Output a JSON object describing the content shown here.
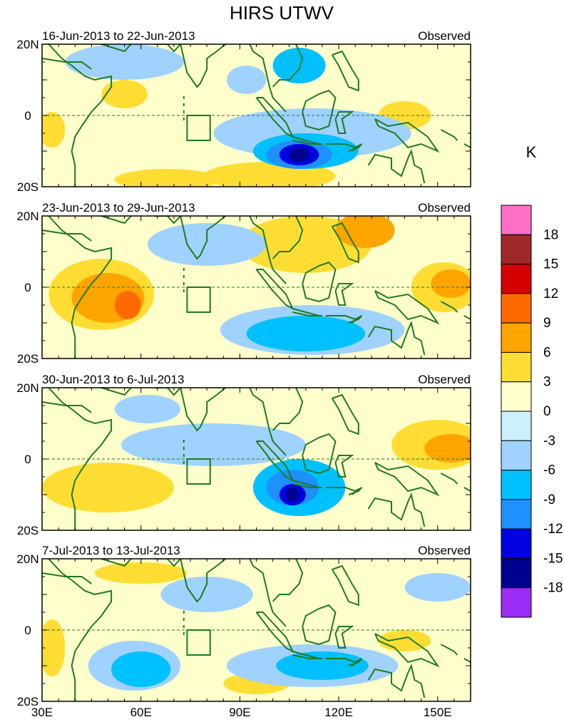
{
  "chart_data": {
    "type": "heatmap",
    "title": "HIRS UTWV",
    "units": "K",
    "x_range": [
      30,
      160
    ],
    "y_range": [
      -20,
      20
    ],
    "x_ticks": [
      {
        "value": 30,
        "label": "30E"
      },
      {
        "value": 60,
        "label": "60E"
      },
      {
        "value": 90,
        "label": "90E"
      },
      {
        "value": 120,
        "label": "120E"
      },
      {
        "value": 150,
        "label": "150E"
      }
    ],
    "y_ticks": [
      {
        "value": 20,
        "label": "20N"
      },
      {
        "value": 0,
        "label": "0"
      },
      {
        "value": -20,
        "label": "20S"
      }
    ],
    "box_region": {
      "lon": [
        74,
        81
      ],
      "lat": [
        -7,
        0
      ]
    },
    "colorbar": {
      "levels": [
        "18",
        "15",
        "12",
        "9",
        "6",
        "3",
        "0",
        "-3",
        "-6",
        "-9",
        "-12",
        "-15",
        "-18"
      ],
      "colors": [
        "#ff6ec7",
        "#a02828",
        "#d40000",
        "#ff6a00",
        "#ffa500",
        "#ffdd33",
        "#ffffcc",
        "#cdf0ff",
        "#a0d2ff",
        "#00c0ff",
        "#1e90ff",
        "#0000e0",
        "#000090",
        "#9a2cf5"
      ]
    },
    "panels": [
      {
        "period": "16-Jun-2013 to 22-Jun-2013",
        "label": "Observed",
        "anomalies": [
          {
            "lon": 33,
            "lat": -4,
            "rx": 4,
            "ry": 5,
            "level": 3
          },
          {
            "lon": 55,
            "lat": 6,
            "rx": 7,
            "ry": 4,
            "level": 3
          },
          {
            "lon": 68,
            "lat": -18,
            "rx": 16,
            "ry": 3,
            "level": 3
          },
          {
            "lon": 99,
            "lat": -17,
            "rx": 20,
            "ry": 4,
            "level": 3
          },
          {
            "lon": 140,
            "lat": 0,
            "rx": 8,
            "ry": 4,
            "level": 3
          },
          {
            "lon": 55,
            "lat": 15,
            "rx": 18,
            "ry": 5,
            "level": -3
          },
          {
            "lon": 92,
            "lat": 10,
            "rx": 6,
            "ry": 4,
            "level": -3
          },
          {
            "lon": 108,
            "lat": 14,
            "rx": 8,
            "ry": 5,
            "level": -6
          },
          {
            "lon": 112,
            "lat": -5,
            "rx": 30,
            "ry": 7,
            "level": -3
          },
          {
            "lon": 110,
            "lat": -10,
            "rx": 16,
            "ry": 5,
            "level": -6
          },
          {
            "lon": 108,
            "lat": -11,
            "rx": 10,
            "ry": 4,
            "level": -9
          },
          {
            "lon": 108,
            "lat": -11,
            "rx": 6,
            "ry": 3,
            "level": -12
          },
          {
            "lon": 108,
            "lat": -11,
            "rx": 3,
            "ry": 2,
            "level": -15
          }
        ]
      },
      {
        "period": "23-Jun-2013 to 29-Jun-2013",
        "label": "Observed",
        "anomalies": [
          {
            "lon": 48,
            "lat": -2,
            "rx": 16,
            "ry": 10,
            "level": 3
          },
          {
            "lon": 50,
            "lat": -3,
            "rx": 11,
            "ry": 7,
            "level": 6
          },
          {
            "lon": 56,
            "lat": -5,
            "rx": 4,
            "ry": 4,
            "level": 9
          },
          {
            "lon": 110,
            "lat": 12,
            "rx": 20,
            "ry": 8,
            "level": 3
          },
          {
            "lon": 128,
            "lat": 16,
            "rx": 9,
            "ry": 5,
            "level": 6
          },
          {
            "lon": 152,
            "lat": 0,
            "rx": 10,
            "ry": 7,
            "level": 3
          },
          {
            "lon": 154,
            "lat": 1,
            "rx": 6,
            "ry": 4,
            "level": 6
          },
          {
            "lon": 80,
            "lat": 12,
            "rx": 18,
            "ry": 6,
            "level": -3
          },
          {
            "lon": 112,
            "lat": -12,
            "rx": 28,
            "ry": 7,
            "level": -3
          },
          {
            "lon": 110,
            "lat": -13,
            "rx": 18,
            "ry": 5,
            "level": -6
          }
        ]
      },
      {
        "period": "30-Jun-2013 to 6-Jul-2013",
        "label": "Observed",
        "anomalies": [
          {
            "lon": 50,
            "lat": -8,
            "rx": 20,
            "ry": 7,
            "level": 3
          },
          {
            "lon": 150,
            "lat": 4,
            "rx": 14,
            "ry": 7,
            "level": 3
          },
          {
            "lon": 154,
            "lat": 3,
            "rx": 8,
            "ry": 4,
            "level": 6
          },
          {
            "lon": 82,
            "lat": 4,
            "rx": 28,
            "ry": 6,
            "level": -3
          },
          {
            "lon": 108,
            "lat": -8,
            "rx": 14,
            "ry": 8,
            "level": -6
          },
          {
            "lon": 106,
            "lat": -8,
            "rx": 8,
            "ry": 5,
            "level": -9
          },
          {
            "lon": 106,
            "lat": -10,
            "rx": 4,
            "ry": 3,
            "level": -12
          },
          {
            "lon": 106,
            "lat": -10,
            "rx": 2,
            "ry": 2,
            "level": -15
          },
          {
            "lon": 62,
            "lat": 14,
            "rx": 10,
            "ry": 4,
            "level": -3
          }
        ]
      },
      {
        "period": "7-Jul-2013 to 13-Jul-2013",
        "label": "Observed",
        "anomalies": [
          {
            "lon": 33,
            "lat": -5,
            "rx": 4,
            "ry": 8,
            "level": 3
          },
          {
            "lon": 60,
            "lat": 16,
            "rx": 14,
            "ry": 3,
            "level": 3
          },
          {
            "lon": 95,
            "lat": -15,
            "rx": 10,
            "ry": 3,
            "level": 3
          },
          {
            "lon": 140,
            "lat": -3,
            "rx": 8,
            "ry": 3,
            "level": 3
          },
          {
            "lon": 58,
            "lat": -10,
            "rx": 14,
            "ry": 7,
            "level": -3
          },
          {
            "lon": 60,
            "lat": -11,
            "rx": 9,
            "ry": 5,
            "level": -6
          },
          {
            "lon": 80,
            "lat": 10,
            "rx": 14,
            "ry": 5,
            "level": -3
          },
          {
            "lon": 112,
            "lat": -10,
            "rx": 26,
            "ry": 6,
            "level": -3
          },
          {
            "lon": 115,
            "lat": -10,
            "rx": 14,
            "ry": 4,
            "level": -6
          },
          {
            "lon": 150,
            "lat": 12,
            "rx": 10,
            "ry": 4,
            "level": -3
          }
        ]
      }
    ]
  }
}
